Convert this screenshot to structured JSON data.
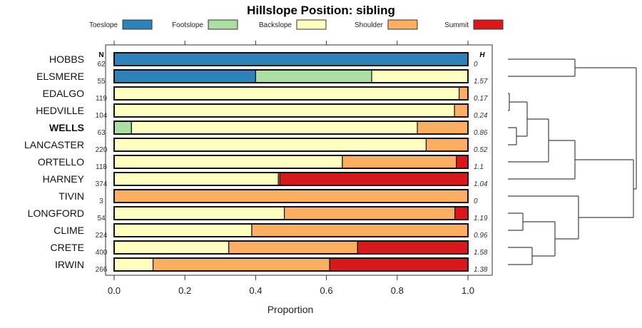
{
  "chart_data": {
    "type": "bar",
    "stacked": true,
    "orientation": "horizontal",
    "title": "Hillslope Position: sibling",
    "xlabel": "Proportion",
    "xlim": [
      0,
      1
    ],
    "xticks": [
      "0.0",
      "0.2",
      "0.4",
      "0.6",
      "0.8",
      "1.0"
    ],
    "xtick_values": [
      0,
      0.2,
      0.4,
      0.6,
      0.8,
      1.0
    ],
    "n_header": "N",
    "h_header": "H",
    "legend_placement": "top",
    "legend": [
      "Toeslope",
      "Footslope",
      "Backslope",
      "Shoulder",
      "Summit"
    ],
    "colors": [
      "#2b83ba",
      "#abdda4",
      "#ffffbf",
      "#fdae61",
      "#d7191c"
    ],
    "highlight": "WELLS",
    "categories": [
      "HOBBS",
      "ELSMERE",
      "EDALGO",
      "HEDVILLE",
      "WELLS",
      "LANCASTER",
      "ORTELLO",
      "HARNEY",
      "TIVIN",
      "LONGFORD",
      "CLIME",
      "CRETE",
      "IRWIN"
    ],
    "n": [
      "62",
      "55",
      "119",
      "104",
      "63",
      "220",
      "118",
      "374",
      "3",
      "54",
      "224",
      "400",
      "266"
    ],
    "h": [
      "0",
      "1.57",
      "0.17",
      "0.24",
      "0.86",
      "0.52",
      "1.1",
      "1.04",
      "0",
      "1.19",
      "0.96",
      "1.58",
      "1.38"
    ],
    "series": [
      {
        "name": "Toeslope",
        "values": [
          1,
          0.4,
          0,
          0,
          0,
          0,
          0,
          0,
          0,
          0,
          0,
          0,
          0
        ]
      },
      {
        "name": "Footslope",
        "values": [
          0,
          0.328,
          0,
          0,
          0.049,
          0,
          0,
          0,
          0,
          0,
          0,
          0,
          0
        ]
      },
      {
        "name": "Backslope",
        "values": [
          0,
          0.272,
          0.975,
          0.962,
          0.808,
          0.882,
          0.645,
          0.464,
          0,
          0.481,
          0.389,
          0.324,
          0.11
        ]
      },
      {
        "name": "Shoulder",
        "values": [
          0,
          0,
          0.025,
          0.038,
          0.143,
          0.118,
          0.322,
          0.004,
          1,
          0.482,
          0.611,
          0.364,
          0.499
        ]
      },
      {
        "name": "Summit",
        "values": [
          0,
          0,
          0,
          0,
          0,
          0,
          0.033,
          0.532,
          0,
          0.037,
          0,
          0.312,
          0.391
        ]
      }
    ]
  }
}
